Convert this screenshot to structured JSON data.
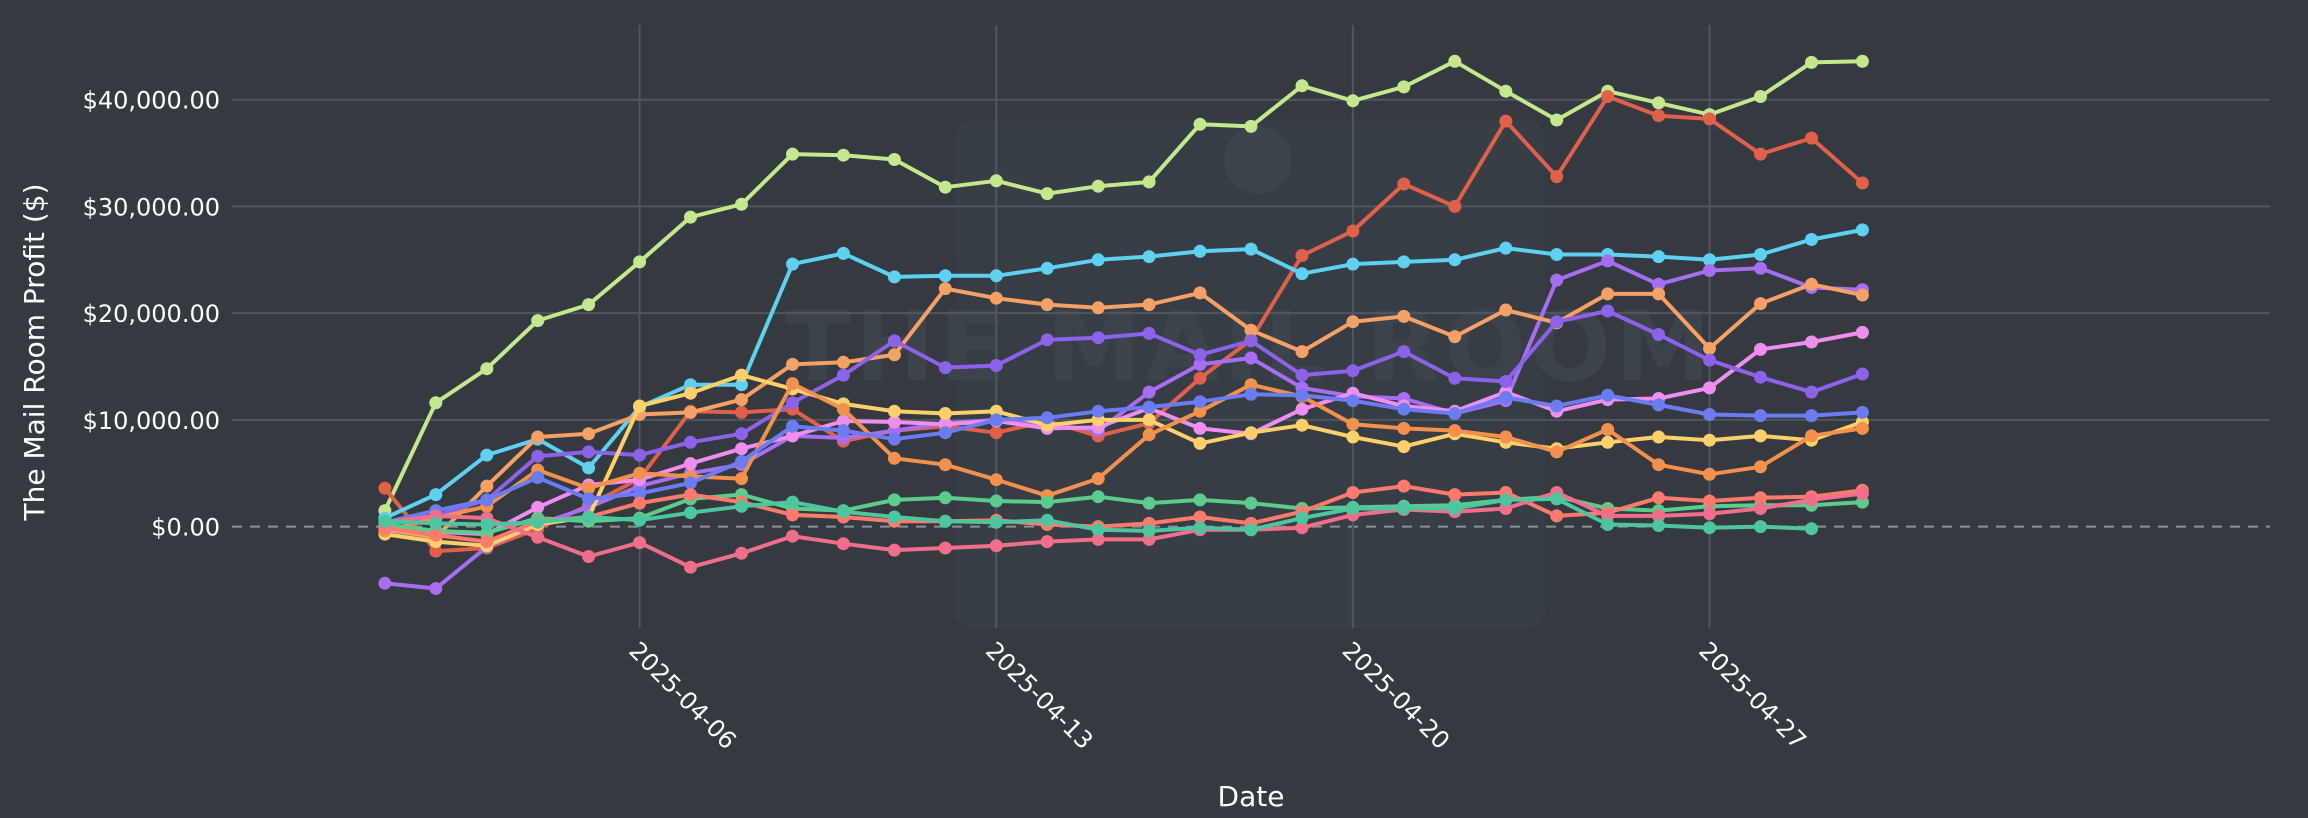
{
  "chart_data": {
    "type": "line",
    "xlabel": "Date",
    "ylabel": "The Mail Room Profit ($)",
    "x_tick_labels": [
      "2025-04-06",
      "2025-04-13",
      "2025-04-20",
      "2025-04-27"
    ],
    "x_tick_dates": [
      "2025-04-06",
      "2025-04-13",
      "2025-04-20",
      "2025-04-27"
    ],
    "y_tick_labels": [
      "$0.00",
      "$10,000.00",
      "$20,000.00",
      "$30,000.00",
      "$40,000.00"
    ],
    "y_tick_values": [
      0,
      10000,
      20000,
      30000,
      40000
    ],
    "xlim": [
      "2025-03-29",
      "2025-05-08"
    ],
    "ylim": [
      -9500,
      47000
    ],
    "grid": true,
    "zero_line": "dashed",
    "watermark_text": "THE MAIL ROOM",
    "x": [
      "2025-04-01",
      "2025-04-02",
      "2025-04-03",
      "2025-04-04",
      "2025-04-05",
      "2025-04-06",
      "2025-04-07",
      "2025-04-08",
      "2025-04-09",
      "2025-04-10",
      "2025-04-11",
      "2025-04-12",
      "2025-04-13",
      "2025-04-14",
      "2025-04-15",
      "2025-04-16",
      "2025-04-17",
      "2025-04-18",
      "2025-04-19",
      "2025-04-20",
      "2025-04-21",
      "2025-04-22",
      "2025-04-23",
      "2025-04-24",
      "2025-04-25",
      "2025-04-26",
      "2025-04-27",
      "2025-04-28",
      "2025-04-29",
      "2025-04-30"
    ],
    "series": [
      {
        "color": "#c3e88d",
        "values": [
          1500,
          11600,
          14800,
          19300,
          20800,
          24800,
          29000,
          30200,
          34900,
          34800,
          34400,
          31800,
          32400,
          31200,
          31900,
          32300,
          37700,
          37500,
          41300,
          39900,
          41200,
          43600,
          40800,
          38100,
          40800,
          39700,
          38600,
          40300,
          43500,
          43600
        ]
      },
      {
        "color": "#e0604a",
        "values": [
          3600,
          -2300,
          -2000,
          -200,
          2000,
          4500,
          10800,
          10700,
          11000,
          8000,
          9000,
          9400,
          8800,
          9900,
          8500,
          9700,
          13900,
          17500,
          25400,
          27700,
          32100,
          30000,
          38000,
          32800,
          40300,
          38500,
          38200,
          34900,
          36400,
          32200
        ]
      },
      {
        "color": "#5ed0f0",
        "values": [
          800,
          3000,
          6700,
          8200,
          5500,
          11200,
          13300,
          13300,
          24600,
          25600,
          23400,
          23500,
          23500,
          24200,
          25000,
          25300,
          25800,
          26000,
          23700,
          24600,
          24800,
          25000,
          26100,
          25500,
          25500,
          25300,
          25000,
          25500,
          26900,
          27800
        ]
      },
      {
        "color": "#a66ef0",
        "values": [
          -5300,
          -5800,
          -1900,
          200,
          1800,
          3800,
          5000,
          5800,
          8500,
          8300,
          9000,
          9700,
          10000,
          9600,
          9000,
          12600,
          15200,
          15800,
          13000,
          12200,
          12000,
          10600,
          11800,
          23100,
          24900,
          22700,
          24000,
          24200,
          22400,
          22200
        ]
      },
      {
        "color": "#f5a064",
        "values": [
          -300,
          -1000,
          3800,
          8400,
          8700,
          10500,
          10700,
          11900,
          15200,
          15400,
          16100,
          22300,
          21400,
          20800,
          20500,
          20800,
          21900,
          18400,
          16400,
          19200,
          19700,
          17800,
          20300,
          19100,
          21800,
          21800,
          16700,
          20900,
          22700,
          21700
        ]
      },
      {
        "color": "#ee8ff0",
        "values": [
          -300,
          -500,
          -700,
          1800,
          3900,
          4400,
          5900,
          7300,
          8500,
          9900,
          9800,
          9600,
          9900,
          9200,
          9300,
          11100,
          9200,
          8700,
          11000,
          12500,
          11300,
          10800,
          12600,
          10800,
          11900,
          12000,
          13000,
          16600,
          17300,
          18200
        ]
      },
      {
        "color": "#8b62e8",
        "values": [
          200,
          1000,
          2500,
          6600,
          7000,
          6700,
          7900,
          8700,
          11600,
          14200,
          17400,
          14900,
          15100,
          17500,
          17700,
          18100,
          16100,
          17400,
          14200,
          14600,
          16400,
          13900,
          13600,
          19200,
          20200,
          18000,
          15600,
          14000,
          12600,
          14300
        ]
      },
      {
        "color": "#ffd06a",
        "values": [
          -700,
          -1400,
          -1800,
          200,
          900,
          11300,
          12500,
          14200,
          12900,
          11500,
          10800,
          10600,
          10800,
          9500,
          10000,
          10000,
          7800,
          8800,
          9500,
          8400,
          7500,
          8700,
          7900,
          7300,
          7900,
          8400,
          8100,
          8500,
          8100,
          9800
        ]
      },
      {
        "color": "#f2914c",
        "values": [
          -400,
          800,
          1900,
          5300,
          3600,
          5000,
          4700,
          4500,
          13400,
          11000,
          6400,
          5800,
          4400,
          2900,
          4500,
          8600,
          10800,
          13300,
          12200,
          9600,
          9200,
          9000,
          8400,
          7000,
          9100,
          5800,
          4900,
          5600,
          8500,
          9200
        ]
      },
      {
        "color": "#6a7cf0",
        "values": [
          400,
          1500,
          2500,
          4600,
          2600,
          3100,
          4100,
          6100,
          9400,
          9000,
          8200,
          8800,
          10000,
          10200,
          10800,
          11200,
          11700,
          12400,
          12300,
          11800,
          11000,
          10600,
          12100,
          11300,
          12300,
          11400,
          10500,
          10400,
          10400,
          10700
        ]
      },
      {
        "color": "#5ccc8c",
        "values": [
          200,
          -400,
          -600,
          800,
          500,
          800,
          2600,
          3000,
          1700,
          1500,
          2500,
          2700,
          2400,
          2300,
          2800,
          2200,
          2500,
          2200,
          1700,
          1800,
          1900,
          2000,
          2500,
          2800,
          1700,
          1500,
          1900,
          2000,
          2000,
          2300
        ]
      },
      {
        "color": "#ff7a6a",
        "values": [
          -100,
          -800,
          -1400,
          500,
          900,
          2200,
          3000,
          2300,
          1100,
          900,
          500,
          500,
          600,
          200,
          0,
          300,
          900,
          300,
          1400,
          3200,
          3800,
          3000,
          3200,
          1000,
          1300,
          2700,
          2400,
          2700,
          2800,
          3400
        ]
      },
      {
        "color": "#f06e8a",
        "values": [
          400,
          1000,
          800,
          -1000,
          -2800,
          -1500,
          -3800,
          -2500,
          -900,
          -1600,
          -2200,
          -2000,
          -1800,
          -1400,
          -1200,
          -1200,
          -300,
          -300,
          -100,
          1100,
          1600,
          1400,
          1700,
          3200,
          1000,
          1000,
          1200,
          1700,
          2500,
          3100
        ]
      },
      {
        "color": "#4dc6a0",
        "values": [
          500,
          300,
          200,
          400,
          900,
          600,
          1300,
          1900,
          2300,
          1400,
          900,
          500,
          400,
          600,
          -300,
          -400,
          -100,
          -300,
          800,
          1700,
          1700,
          1700,
          2500,
          2600,
          200,
          100,
          -100,
          0,
          -200,
          null
        ]
      }
    ]
  }
}
